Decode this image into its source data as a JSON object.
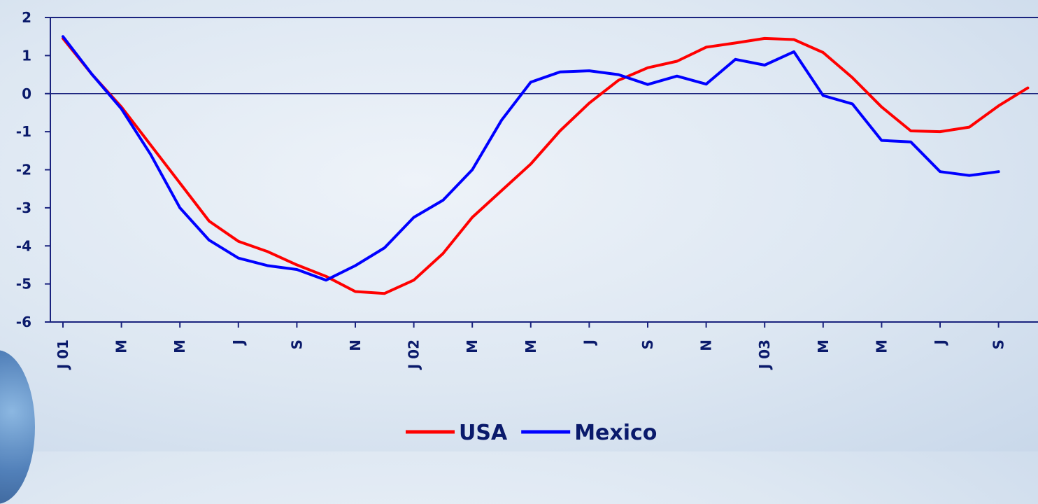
{
  "chart_data": {
    "type": "line",
    "title": "",
    "xlabel": "",
    "ylabel": "",
    "ylim": [
      -6,
      2
    ],
    "y_ticks": [
      2,
      1,
      0,
      -1,
      -2,
      -3,
      -4,
      -5,
      -6
    ],
    "x_tick_labels": [
      "J 01",
      "M",
      "M",
      "J",
      "S",
      "N",
      "J 02",
      "M",
      "M",
      "J",
      "S",
      "N",
      "J 03",
      "M",
      "M",
      "J",
      "S"
    ],
    "x_tick_positions": [
      0,
      2,
      4,
      6,
      8,
      10,
      12,
      14,
      16,
      18,
      20,
      22,
      24,
      26,
      28,
      30,
      32
    ],
    "x_count": 35,
    "grid": false,
    "legend_position": "bottom-center",
    "series": [
      {
        "name": "USA",
        "color": "#ff0000",
        "values": [
          1.45,
          0.5,
          -0.35,
          -1.35,
          -2.35,
          -3.35,
          -3.88,
          -4.15,
          -4.5,
          -4.8,
          -5.2,
          -5.25,
          -4.9,
          -4.2,
          -3.25,
          -2.55,
          -1.85,
          -0.98,
          -0.25,
          0.35,
          0.68,
          0.85,
          1.22,
          1.33,
          1.45,
          1.42,
          1.08,
          0.42,
          -0.35,
          -0.98,
          -1.0,
          -0.88,
          -0.32,
          0.15
        ]
      },
      {
        "name": "Mexico",
        "color": "#0000ff",
        "values": [
          1.5,
          0.5,
          -0.4,
          -1.6,
          -3.0,
          -3.85,
          -4.32,
          -4.52,
          -4.62,
          -4.9,
          -4.52,
          -4.05,
          -3.25,
          -2.8,
          -2.0,
          -0.7,
          0.3,
          0.57,
          0.6,
          0.5,
          0.24,
          0.46,
          0.25,
          0.9,
          0.75,
          1.1,
          -0.05,
          -0.27,
          -1.23,
          -1.27,
          -2.05,
          -2.15,
          -2.05
        ]
      }
    ]
  }
}
